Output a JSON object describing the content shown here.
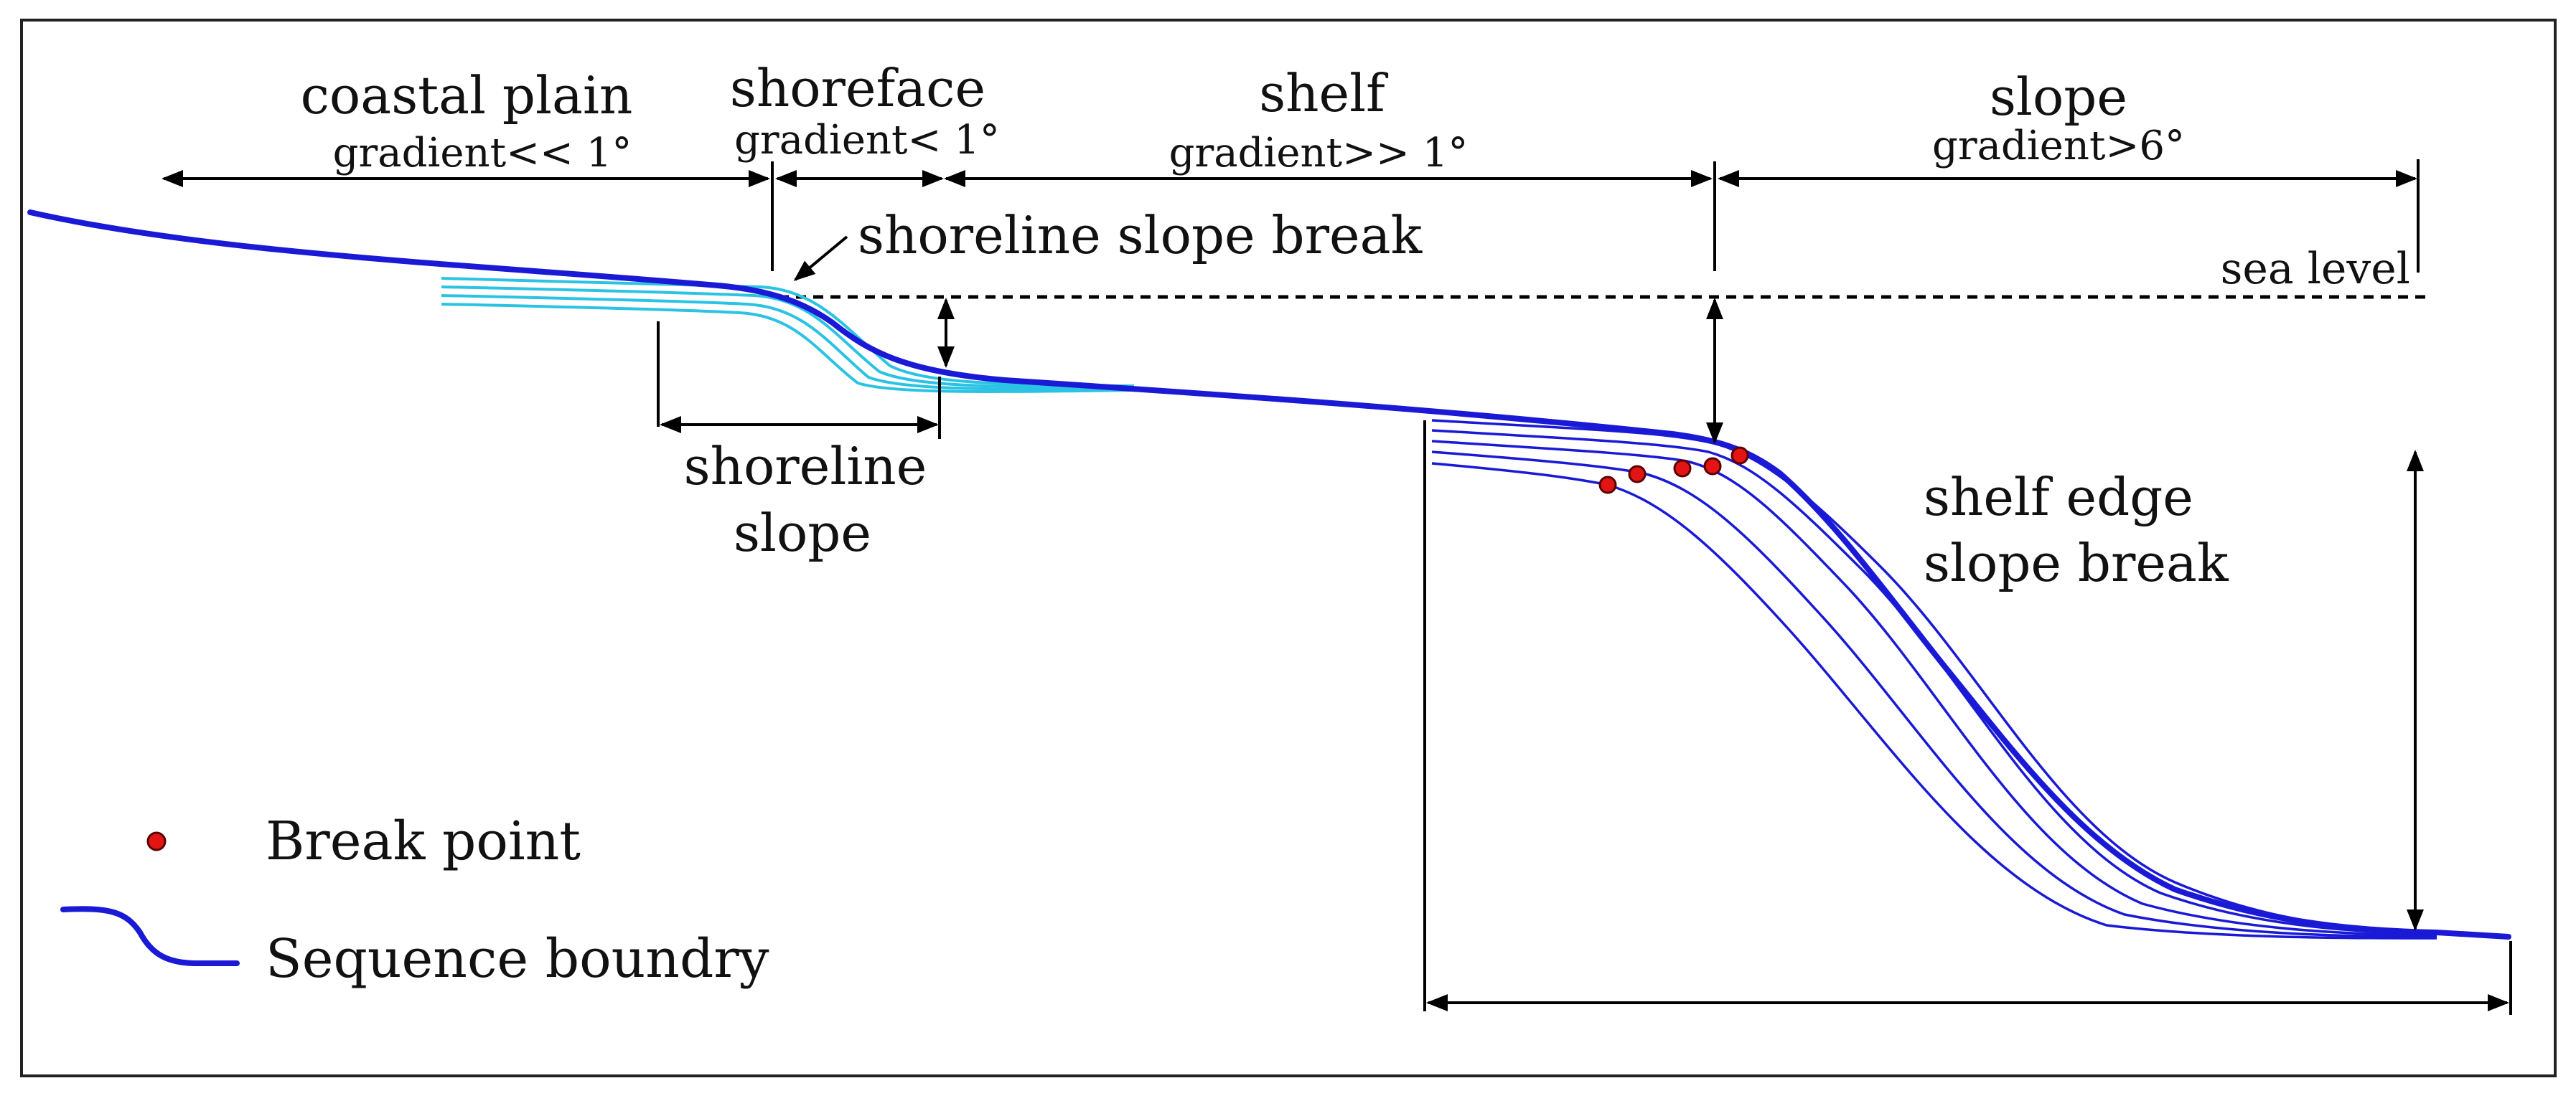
{
  "zones": [
    {
      "id": "coastal-plain",
      "name": "coastal plain",
      "gradient": "gradient<< 1°"
    },
    {
      "id": "shoreface",
      "name": "shoreface",
      "gradient": "gradient< 1°"
    },
    {
      "id": "shelf",
      "name": "shelf",
      "gradient": "gradient>> 1°"
    },
    {
      "id": "slope",
      "name": "slope",
      "gradient": "gradient>6°"
    }
  ],
  "labels": {
    "shoreline_slope_break": "shoreline slope break",
    "sea_level": "sea level",
    "shoreline_slope_line1": "shoreline",
    "shoreline_slope_line2": "slope",
    "shelf_edge_line1": "shelf edge",
    "shelf_edge_line2": "slope break"
  },
  "legend": {
    "break_point": "Break point",
    "sequence_boundary": "Sequence boundry"
  },
  "colors": {
    "sequence_boundary": "#1a1ad6",
    "shoreline_clinoform": "#2bc3e3",
    "break_point": "#e31414"
  }
}
